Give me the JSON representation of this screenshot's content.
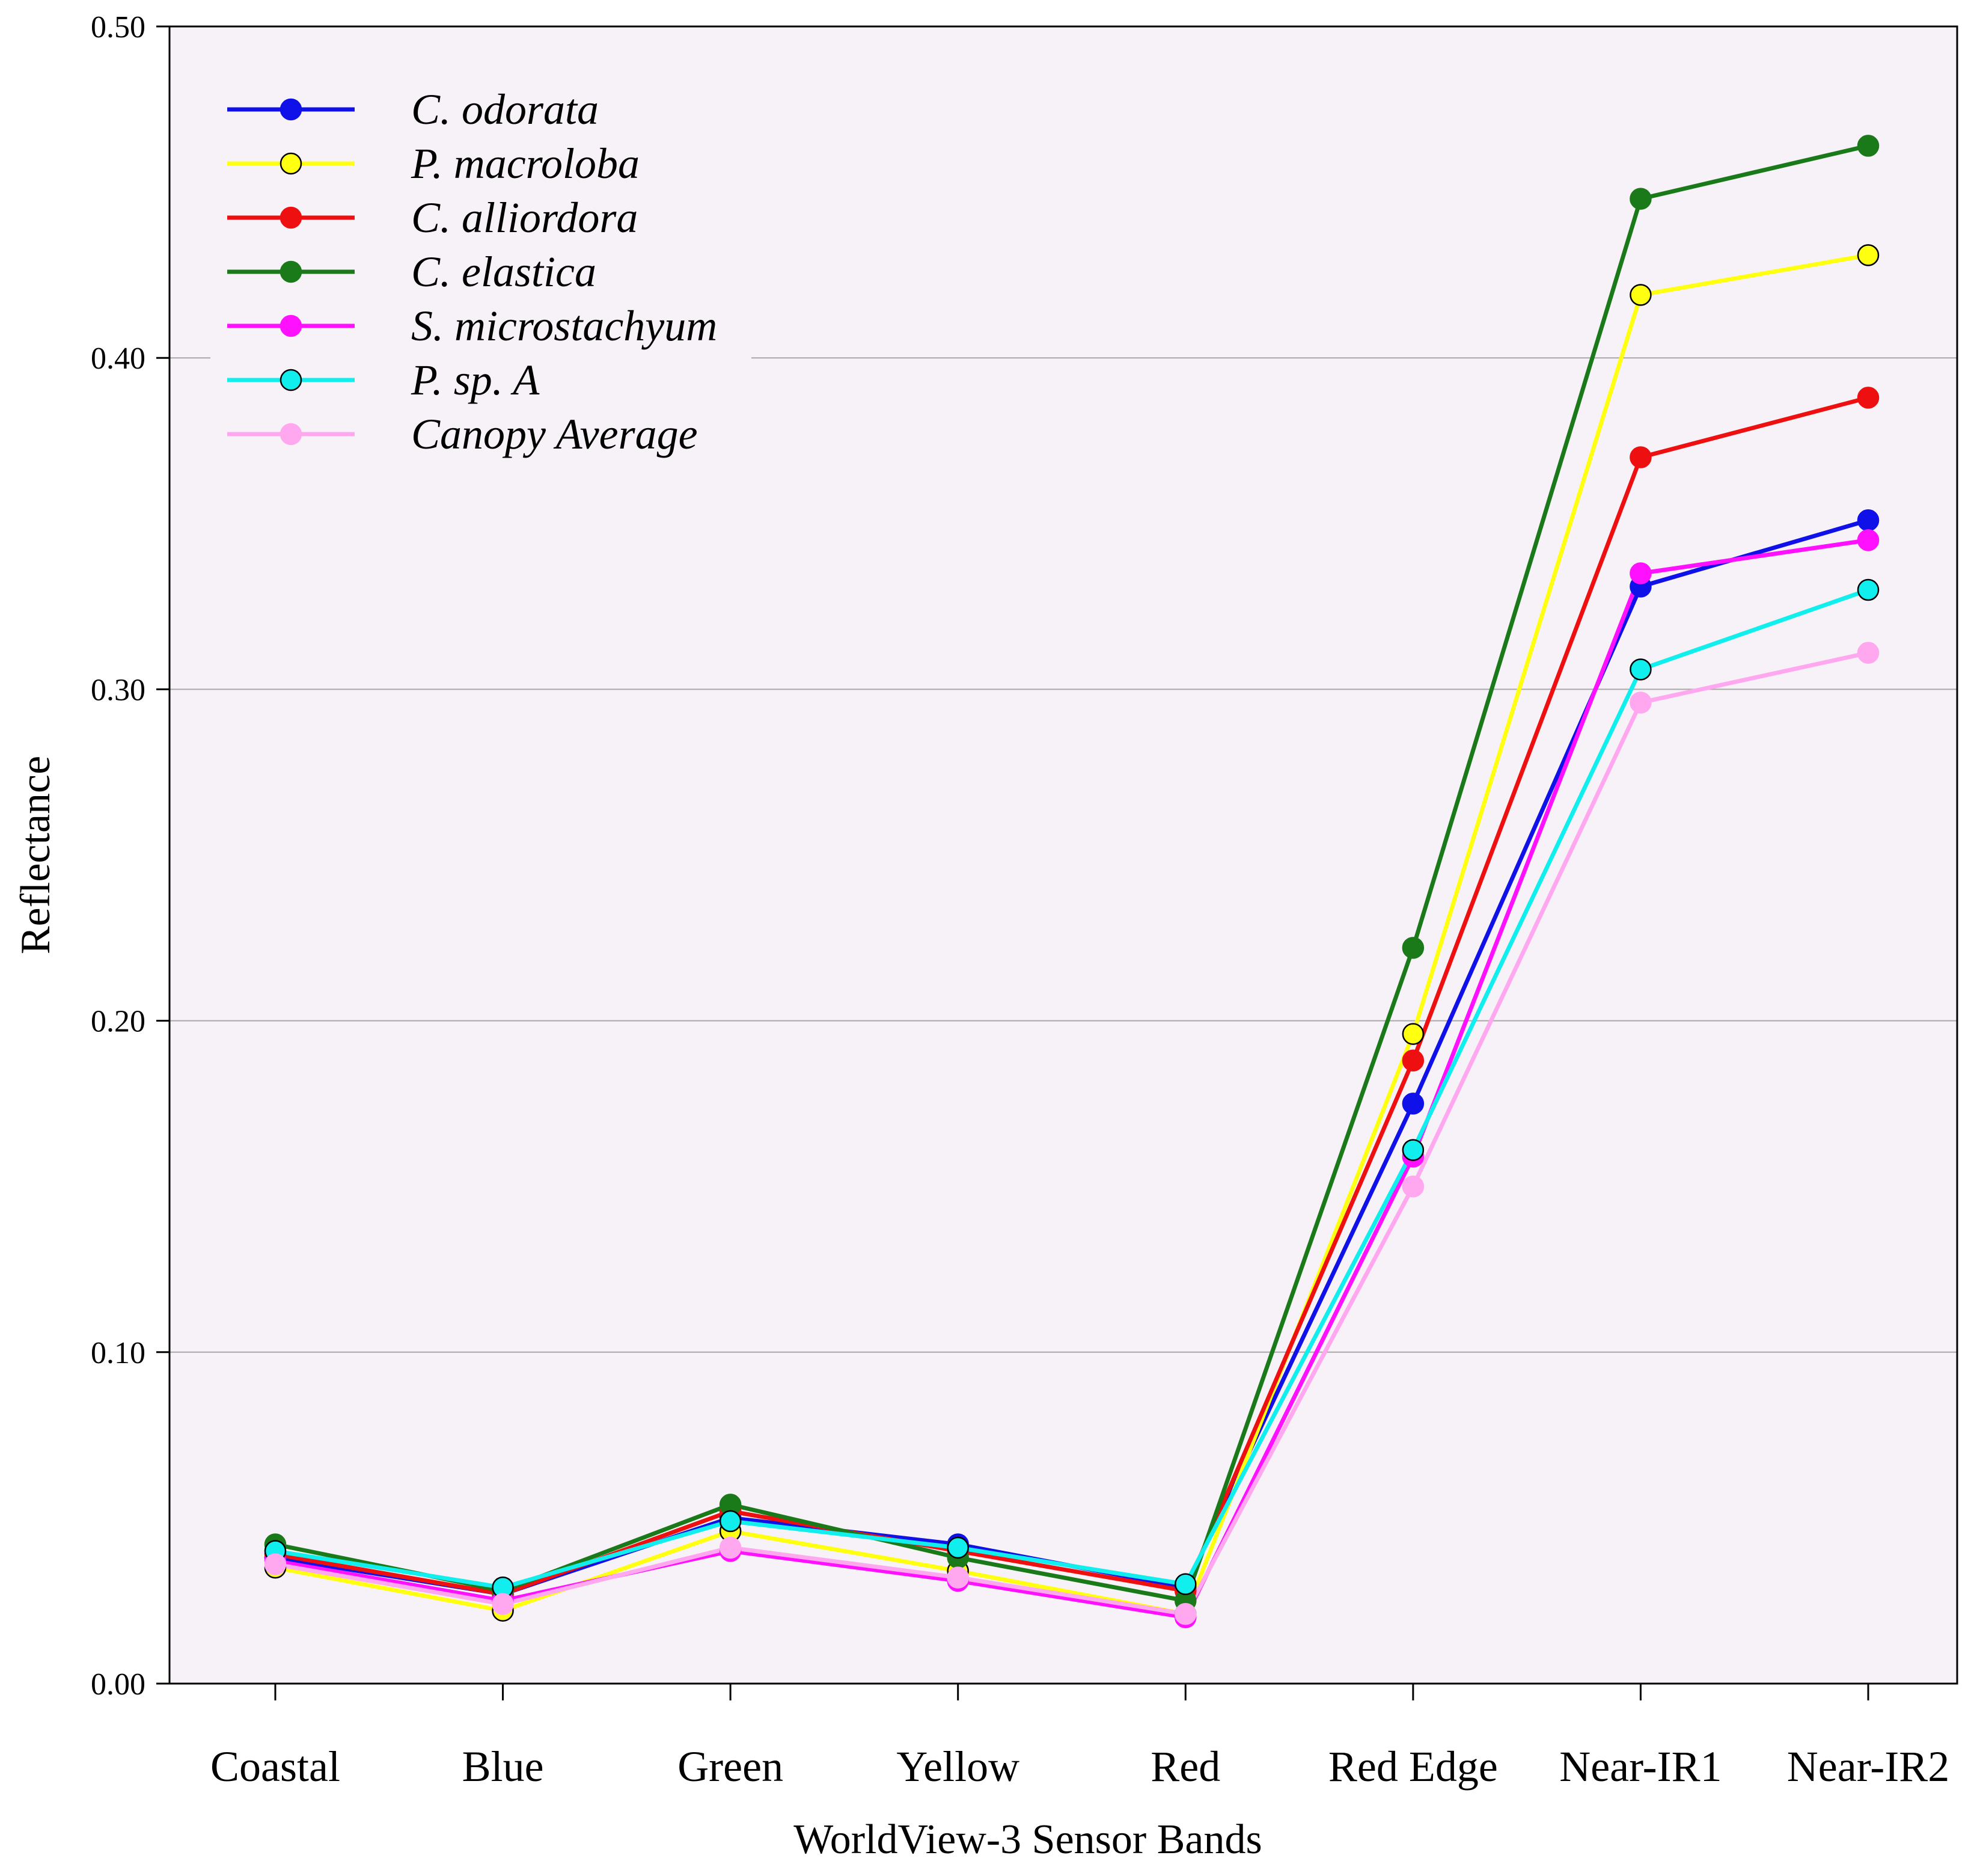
{
  "chart_data": {
    "type": "line",
    "title": "",
    "xlabel": "WorldView-3 Sensor Bands",
    "ylabel": "Reflectance",
    "categories": [
      "Coastal",
      "Blue",
      "Green",
      "Yellow",
      "Red",
      "Red Edge",
      "Near-IR1",
      "Near-IR2"
    ],
    "ylim": [
      0,
      0.5
    ],
    "yticks": [
      0.0,
      0.1,
      0.2,
      0.3,
      0.4,
      0.5
    ],
    "ytick_labels": [
      "0.00",
      "0.10",
      "0.20",
      "0.30",
      "0.40",
      "0.50"
    ],
    "grid": true,
    "legend_position": "top-left",
    "plot_background": "#f7f2f7",
    "series": [
      {
        "name": "C. odorata",
        "color": "#1010e8",
        "marker_edge": "#1010e8",
        "values": [
          0.038,
          0.027,
          0.05,
          0.042,
          0.029,
          0.175,
          0.331,
          0.351
        ]
      },
      {
        "name": "P. macroloba",
        "color": "#ffff10",
        "marker_edge": "#000000",
        "values": [
          0.035,
          0.022,
          0.046,
          0.034,
          0.021,
          0.196,
          0.419,
          0.431
        ]
      },
      {
        "name": "C. alliordora",
        "color": "#ee1010",
        "marker_edge": "#ee1010",
        "values": [
          0.039,
          0.027,
          0.052,
          0.04,
          0.028,
          0.188,
          0.37,
          0.388
        ]
      },
      {
        "name": "C. elastica",
        "color": "#1a7a1a",
        "marker_edge": "#1a7a1a",
        "values": [
          0.042,
          0.028,
          0.054,
          0.038,
          0.025,
          0.222,
          0.448,
          0.464
        ]
      },
      {
        "name": "S. microstachyum",
        "color": "#ff10ff",
        "marker_edge": "#ff10ff",
        "values": [
          0.037,
          0.025,
          0.04,
          0.031,
          0.02,
          0.159,
          0.335,
          0.345
        ]
      },
      {
        "name": "P. sp. A",
        "color": "#10eeee",
        "marker_edge": "#000000",
        "values": [
          0.04,
          0.029,
          0.049,
          0.041,
          0.03,
          0.161,
          0.306,
          0.33
        ]
      },
      {
        "name": "Canopy Average",
        "color": "#ffa8f0",
        "marker_edge": "#ffa8f0",
        "values": [
          0.036,
          0.024,
          0.041,
          0.032,
          0.021,
          0.15,
          0.296,
          0.311
        ]
      }
    ]
  }
}
